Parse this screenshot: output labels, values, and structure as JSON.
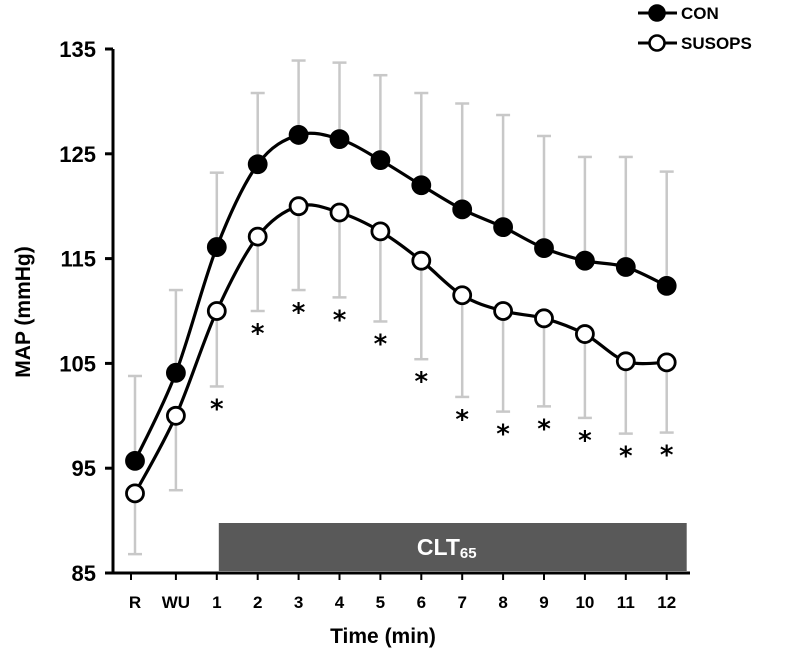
{
  "chart_data": {
    "type": "line",
    "title": "",
    "xlabel": "Time (min)",
    "ylabel": "MAP (mmHg)",
    "ylim": [
      85,
      135
    ],
    "yticks": [
      85,
      95,
      105,
      115,
      125,
      135
    ],
    "categories": [
      "R",
      "WU",
      "1",
      "2",
      "3",
      "4",
      "5",
      "6",
      "7",
      "8",
      "9",
      "10",
      "11",
      "12"
    ],
    "series": [
      {
        "name": "CON",
        "marker": "filled-circle",
        "color": "#000000",
        "values": [
          95.7,
          104.1,
          116.1,
          124.0,
          126.8,
          126.4,
          124.4,
          122.0,
          119.7,
          118.0,
          116.0,
          114.8,
          114.2,
          112.4
        ],
        "error_upper": [
          103.8,
          112.0,
          123.2,
          130.8,
          133.9,
          133.7,
          132.5,
          130.8,
          129.8,
          128.7,
          126.7,
          124.7,
          124.7,
          123.3
        ]
      },
      {
        "name": "SUSOPS",
        "marker": "open-circle",
        "color": "#000000",
        "values": [
          92.6,
          100.0,
          110.0,
          117.1,
          120.0,
          119.4,
          117.6,
          114.8,
          111.5,
          110.0,
          109.3,
          107.8,
          105.2,
          105.1
        ],
        "error_lower": [
          86.8,
          92.9,
          102.8,
          110.0,
          112.0,
          111.3,
          109.0,
          105.4,
          101.8,
          100.4,
          100.9,
          99.8,
          98.3,
          98.4
        ]
      }
    ],
    "significance_marker": "*",
    "significant_categories": [
      "1",
      "2",
      "3",
      "4",
      "5",
      "6",
      "7",
      "8",
      "9",
      "10",
      "11",
      "12"
    ],
    "annotation_bar": {
      "label": "CLT",
      "subscript": "65",
      "from_category": "1",
      "to_category": "12",
      "color": "#595959"
    },
    "legend_position": "top-right",
    "error_bar_color": "#c8c8c8",
    "grid": false
  }
}
